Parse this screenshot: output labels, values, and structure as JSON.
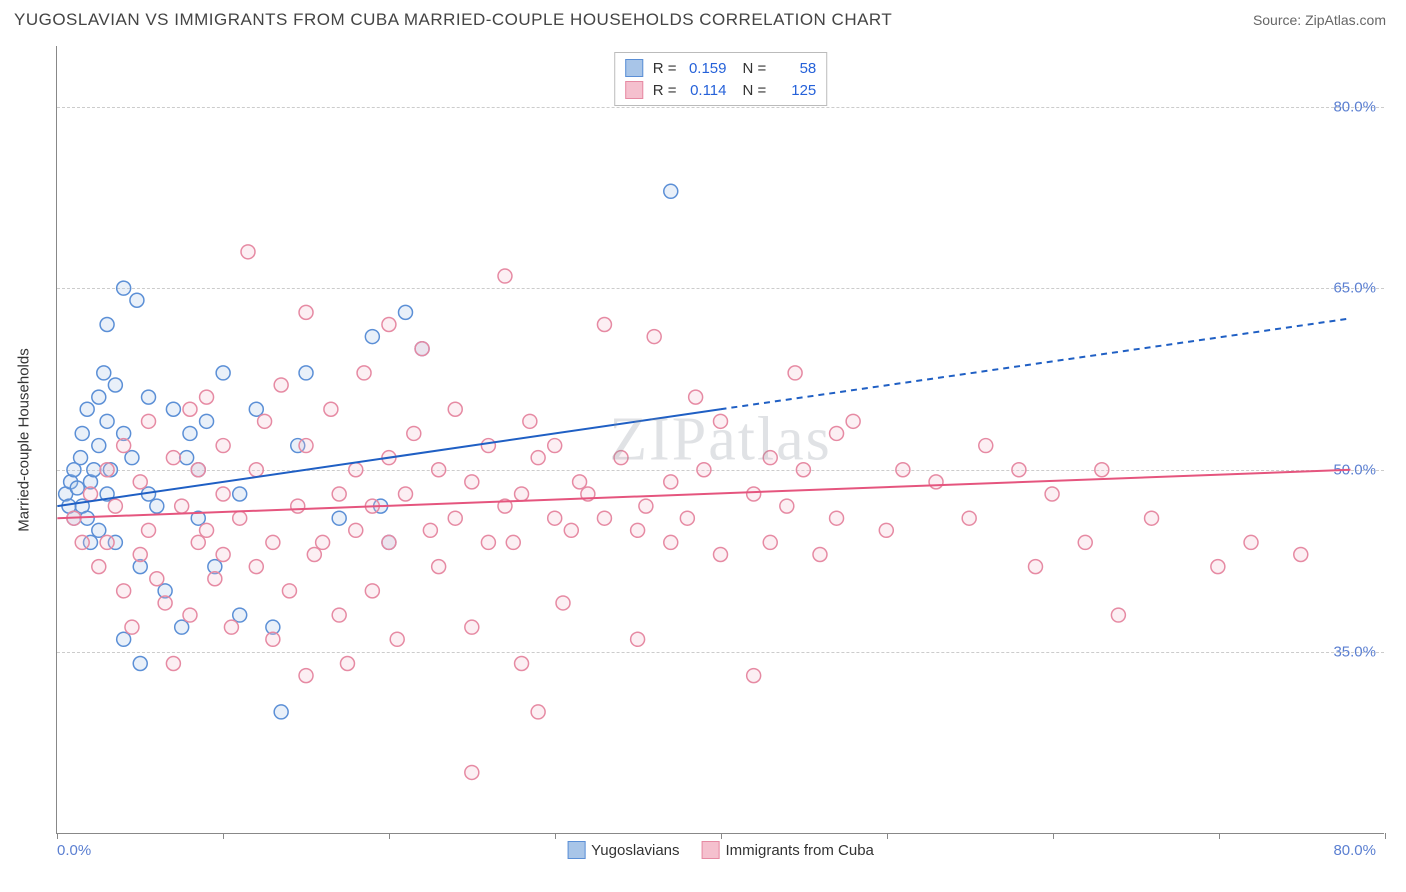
{
  "title": "YUGOSLAVIAN VS IMMIGRANTS FROM CUBA MARRIED-COUPLE HOUSEHOLDS CORRELATION CHART",
  "source": "Source: ZipAtlas.com",
  "ylabel": "Married-couple Households",
  "watermark": "ZIPatlas",
  "chart": {
    "type": "scatter",
    "xlim": [
      0,
      80
    ],
    "ylim": [
      20,
      85
    ],
    "xtick_step": 10,
    "yticks": [
      35,
      50,
      65,
      80
    ],
    "ytick_labels": [
      "35.0%",
      "50.0%",
      "65.0%",
      "80.0%"
    ],
    "xlabel_min": "0.0%",
    "xlabel_max": "80.0%",
    "background_color": "#ffffff",
    "grid_color": "#cccccc",
    "marker_radius": 7,
    "marker_stroke_width": 1.5,
    "marker_fill_opacity": 0.25,
    "trend_line_width": 2
  },
  "series": [
    {
      "id": "yugoslavians",
      "label": "Yugoslavians",
      "color_stroke": "#5b8fd6",
      "color_fill": "#a8c5e8",
      "trend_color": "#1f5fc4",
      "R": "0.159",
      "N": "58",
      "trend": {
        "x1": 0,
        "y1": 47,
        "x2": 40,
        "y2": 55,
        "x_extend": 78,
        "y_extend": 62.5
      },
      "points": [
        [
          0.5,
          48
        ],
        [
          0.7,
          47
        ],
        [
          0.8,
          49
        ],
        [
          1,
          46
        ],
        [
          1,
          50
        ],
        [
          1.2,
          48.5
        ],
        [
          1.4,
          51
        ],
        [
          1.5,
          47
        ],
        [
          1.5,
          53
        ],
        [
          1.8,
          46
        ],
        [
          1.8,
          55
        ],
        [
          2,
          49
        ],
        [
          2,
          44
        ],
        [
          2.2,
          50
        ],
        [
          2.5,
          56
        ],
        [
          2.5,
          52
        ],
        [
          2.5,
          45
        ],
        [
          2.8,
          58
        ],
        [
          3,
          54
        ],
        [
          3,
          48
        ],
        [
          3,
          62
        ],
        [
          3.2,
          50
        ],
        [
          3.5,
          44
        ],
        [
          3.5,
          57
        ],
        [
          4,
          65
        ],
        [
          4,
          53
        ],
        [
          4,
          36
        ],
        [
          4.5,
          51
        ],
        [
          4.8,
          64
        ],
        [
          5,
          42
        ],
        [
          5,
          34
        ],
        [
          5.5,
          56
        ],
        [
          5.5,
          48
        ],
        [
          6,
          47
        ],
        [
          6.5,
          40
        ],
        [
          7,
          55
        ],
        [
          7.5,
          37
        ],
        [
          7.8,
          51
        ],
        [
          8,
          53
        ],
        [
          8.5,
          46
        ],
        [
          8.5,
          50
        ],
        [
          9,
          54
        ],
        [
          9.5,
          42
        ],
        [
          10,
          58
        ],
        [
          11,
          38
        ],
        [
          11,
          48
        ],
        [
          12,
          55
        ],
        [
          13,
          37
        ],
        [
          13.5,
          30
        ],
        [
          14.5,
          52
        ],
        [
          15,
          58
        ],
        [
          17,
          46
        ],
        [
          19,
          61
        ],
        [
          19.5,
          47
        ],
        [
          20,
          44
        ],
        [
          21,
          63
        ],
        [
          22,
          60
        ],
        [
          37,
          73
        ]
      ]
    },
    {
      "id": "cuba",
      "label": "Immigrants from Cuba",
      "color_stroke": "#e68aa3",
      "color_fill": "#f5c0ce",
      "trend_color": "#e5557e",
      "R": "0.114",
      "N": "125",
      "trend": {
        "x1": 0,
        "y1": 46,
        "x2": 78,
        "y2": 50
      },
      "points": [
        [
          1,
          46
        ],
        [
          1.5,
          44
        ],
        [
          2,
          48
        ],
        [
          2.5,
          42
        ],
        [
          3,
          50
        ],
        [
          3,
          44
        ],
        [
          3.5,
          47
        ],
        [
          4,
          52
        ],
        [
          4,
          40
        ],
        [
          4.5,
          37
        ],
        [
          5,
          49
        ],
        [
          5,
          43
        ],
        [
          5.5,
          54
        ],
        [
          5.5,
          45
        ],
        [
          6,
          41
        ],
        [
          6.5,
          39
        ],
        [
          7,
          51
        ],
        [
          7,
          34
        ],
        [
          7.5,
          47
        ],
        [
          8,
          55
        ],
        [
          8,
          38
        ],
        [
          8.5,
          44
        ],
        [
          8.5,
          50
        ],
        [
          9,
          45
        ],
        [
          9,
          56
        ],
        [
          9.5,
          41
        ],
        [
          10,
          43
        ],
        [
          10,
          48
        ],
        [
          10,
          52
        ],
        [
          10.5,
          37
        ],
        [
          11,
          46
        ],
        [
          11.5,
          68
        ],
        [
          12,
          42
        ],
        [
          12,
          50
        ],
        [
          12.5,
          54
        ],
        [
          13,
          36
        ],
        [
          13,
          44
        ],
        [
          13.5,
          57
        ],
        [
          14,
          40
        ],
        [
          14.5,
          47
        ],
        [
          15,
          52
        ],
        [
          15,
          33
        ],
        [
          15,
          63
        ],
        [
          15.5,
          43
        ],
        [
          16,
          44
        ],
        [
          16.5,
          55
        ],
        [
          17,
          48
        ],
        [
          17,
          38
        ],
        [
          17.5,
          34
        ],
        [
          18,
          50
        ],
        [
          18,
          45
        ],
        [
          18.5,
          58
        ],
        [
          19,
          40
        ],
        [
          19,
          47
        ],
        [
          20,
          51
        ],
        [
          20,
          62
        ],
        [
          20,
          44
        ],
        [
          20.5,
          36
        ],
        [
          21,
          48
        ],
        [
          21.5,
          53
        ],
        [
          22,
          60
        ],
        [
          22.5,
          45
        ],
        [
          23,
          50
        ],
        [
          23,
          42
        ],
        [
          24,
          46
        ],
        [
          24,
          55
        ],
        [
          25,
          25
        ],
        [
          25,
          49
        ],
        [
          25,
          37
        ],
        [
          26,
          52
        ],
        [
          26,
          44
        ],
        [
          27,
          66
        ],
        [
          27,
          47
        ],
        [
          27.5,
          44
        ],
        [
          28,
          48
        ],
        [
          28,
          34
        ],
        [
          28.5,
          54
        ],
        [
          29,
          51
        ],
        [
          29,
          30
        ],
        [
          30,
          46
        ],
        [
          30,
          52
        ],
        [
          30.5,
          39
        ],
        [
          31,
          45
        ],
        [
          31.5,
          49
        ],
        [
          32,
          48
        ],
        [
          33,
          62
        ],
        [
          33,
          46
        ],
        [
          34,
          51
        ],
        [
          35,
          45
        ],
        [
          35,
          36
        ],
        [
          35.5,
          47
        ],
        [
          36,
          61
        ],
        [
          37,
          49
        ],
        [
          37,
          44
        ],
        [
          38,
          46
        ],
        [
          38.5,
          56
        ],
        [
          39,
          50
        ],
        [
          40,
          54
        ],
        [
          40,
          43
        ],
        [
          42,
          48
        ],
        [
          42,
          33
        ],
        [
          43,
          51
        ],
        [
          43,
          44
        ],
        [
          44,
          47
        ],
        [
          44.5,
          58
        ],
        [
          45,
          50
        ],
        [
          46,
          43
        ],
        [
          47,
          53
        ],
        [
          47,
          46
        ],
        [
          48,
          54
        ],
        [
          50,
          45
        ],
        [
          51,
          50
        ],
        [
          53,
          49
        ],
        [
          55,
          46
        ],
        [
          56,
          52
        ],
        [
          58,
          50
        ],
        [
          59,
          42
        ],
        [
          60,
          48
        ],
        [
          62,
          44
        ],
        [
          63,
          50
        ],
        [
          64,
          38
        ],
        [
          66,
          46
        ],
        [
          70,
          42
        ],
        [
          72,
          44
        ],
        [
          75,
          43
        ]
      ]
    }
  ],
  "legend_stats": {
    "r_label": "R =",
    "n_label": "N ="
  }
}
